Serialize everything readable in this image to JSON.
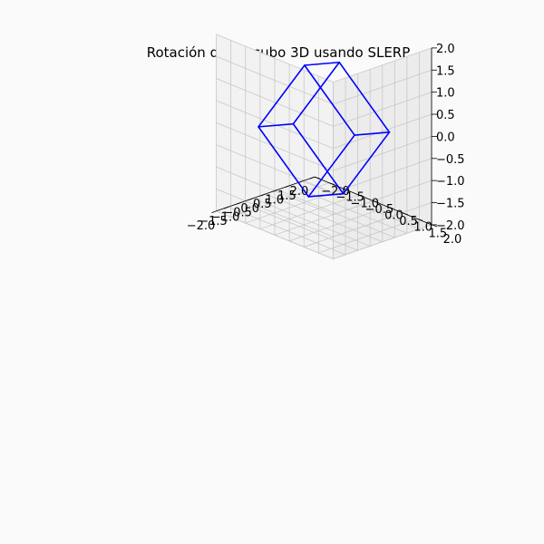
{
  "figure": {
    "background": "#fafafa"
  },
  "chart_data": {
    "type": "line3d",
    "title": "Rotación de un cubo 3D usando SLERP",
    "xlim": [
      -2,
      2
    ],
    "ylim": [
      -2,
      2
    ],
    "zlim": [
      -2,
      2
    ],
    "xticks": [
      "−2.0",
      "−1.5",
      "−1.0",
      "−0.5",
      "0.0",
      "0.5",
      "1.0",
      "1.5",
      "2.0"
    ],
    "yticks": [
      "−2.0",
      "−1.5",
      "−1.0",
      "−0.5",
      "0.0",
      "0.5",
      "1.0",
      "1.5",
      "2.0"
    ],
    "zticks": [
      "−2.0",
      "−1.5",
      "−1.0",
      "−0.5",
      "0.0",
      "0.5",
      "1.0",
      "1.5",
      "2.0"
    ],
    "grid": true,
    "series": [
      {
        "color": "#0000ff",
        "vertices": [
          [
            -1,
            -1,
            -1
          ],
          [
            1,
            -1,
            -1
          ],
          [
            1,
            1,
            -1
          ],
          [
            -1,
            1,
            -1
          ],
          [
            -1,
            -1,
            1
          ],
          [
            1,
            -1,
            1
          ],
          [
            1,
            1,
            1
          ],
          [
            -1,
            1,
            1
          ]
        ],
        "edges": [
          [
            0,
            1
          ],
          [
            1,
            2
          ],
          [
            2,
            3
          ],
          [
            3,
            0
          ],
          [
            4,
            5
          ],
          [
            5,
            6
          ],
          [
            6,
            7
          ],
          [
            7,
            4
          ],
          [
            0,
            4
          ],
          [
            1,
            5
          ],
          [
            2,
            6
          ],
          [
            3,
            7
          ]
        ]
      }
    ]
  }
}
